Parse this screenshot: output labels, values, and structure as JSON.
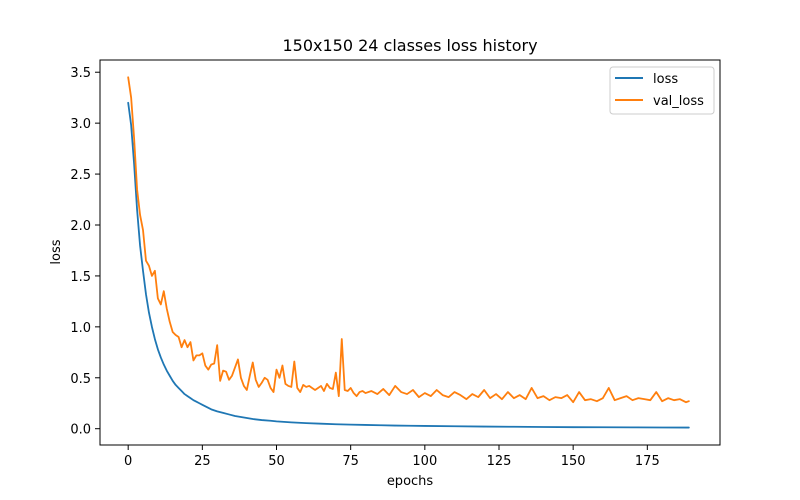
{
  "chart_data": {
    "type": "line",
    "title": "150x150 24 classes loss history",
    "xlabel": "epochs",
    "ylabel": "loss",
    "xlim": [
      -9.5,
      199.5
    ],
    "ylim": [
      -0.16,
      3.62
    ],
    "xticks": [
      0,
      25,
      50,
      75,
      100,
      125,
      150,
      175
    ],
    "yticks": [
      0.0,
      0.5,
      1.0,
      1.5,
      2.0,
      2.5,
      3.0,
      3.5
    ],
    "xtick_labels": [
      "0",
      "25",
      "50",
      "75",
      "100",
      "125",
      "150",
      "175"
    ],
    "ytick_labels": [
      "0.0",
      "0.5",
      "1.0",
      "1.5",
      "2.0",
      "2.5",
      "3.0",
      "3.5"
    ],
    "grid": false,
    "legend_position": "top-right",
    "series": [
      {
        "name": "loss",
        "color": "#1f77b4",
        "x": [
          0,
          1,
          2,
          3,
          4,
          5,
          6,
          7,
          8,
          9,
          10,
          11,
          12,
          13,
          14,
          15,
          16,
          17,
          18,
          19,
          20,
          21,
          22,
          23,
          24,
          25,
          26,
          27,
          28,
          29,
          30,
          32,
          34,
          36,
          38,
          40,
          42,
          45,
          48,
          50,
          55,
          60,
          65,
          70,
          75,
          80,
          85,
          90,
          95,
          100,
          110,
          120,
          130,
          140,
          150,
          160,
          170,
          180,
          189
        ],
        "y": [
          3.2,
          2.98,
          2.6,
          2.15,
          1.8,
          1.55,
          1.32,
          1.14,
          1.0,
          0.88,
          0.78,
          0.7,
          0.63,
          0.57,
          0.52,
          0.47,
          0.43,
          0.4,
          0.37,
          0.34,
          0.32,
          0.3,
          0.28,
          0.265,
          0.25,
          0.235,
          0.22,
          0.205,
          0.19,
          0.18,
          0.17,
          0.155,
          0.14,
          0.125,
          0.115,
          0.105,
          0.095,
          0.085,
          0.078,
          0.072,
          0.062,
          0.055,
          0.049,
          0.044,
          0.04,
          0.037,
          0.034,
          0.031,
          0.029,
          0.027,
          0.024,
          0.021,
          0.019,
          0.017,
          0.015,
          0.014,
          0.013,
          0.012,
          0.011
        ]
      },
      {
        "name": "val_loss",
        "color": "#ff7f0e",
        "x": [
          0,
          1,
          2,
          3,
          4,
          5,
          6,
          7,
          8,
          9,
          10,
          11,
          12,
          13,
          14,
          15,
          16,
          17,
          18,
          19,
          20,
          21,
          22,
          23,
          24,
          25,
          26,
          27,
          28,
          29,
          30,
          31,
          32,
          33,
          34,
          35,
          36,
          37,
          38,
          39,
          40,
          41,
          42,
          43,
          44,
          45,
          46,
          47,
          48,
          49,
          50,
          51,
          52,
          53,
          54,
          55,
          56,
          57,
          58,
          59,
          60,
          61,
          62,
          63,
          64,
          65,
          66,
          67,
          68,
          69,
          70,
          71,
          72,
          73,
          74,
          75,
          76,
          77,
          78,
          79,
          80,
          82,
          84,
          86,
          88,
          90,
          92,
          94,
          96,
          98,
          100,
          102,
          104,
          106,
          108,
          110,
          112,
          114,
          116,
          118,
          120,
          122,
          124,
          126,
          128,
          130,
          132,
          134,
          136,
          138,
          140,
          142,
          144,
          146,
          148,
          150,
          152,
          154,
          156,
          158,
          160,
          162,
          164,
          166,
          168,
          170,
          172,
          174,
          176,
          178,
          180,
          182,
          184,
          186,
          188,
          189
        ],
        "y": [
          3.45,
          3.25,
          2.85,
          2.35,
          2.1,
          1.95,
          1.65,
          1.6,
          1.5,
          1.55,
          1.28,
          1.22,
          1.35,
          1.18,
          1.05,
          0.95,
          0.92,
          0.9,
          0.8,
          0.87,
          0.8,
          0.85,
          0.67,
          0.72,
          0.72,
          0.74,
          0.62,
          0.58,
          0.63,
          0.64,
          0.82,
          0.47,
          0.57,
          0.56,
          0.48,
          0.52,
          0.6,
          0.68,
          0.5,
          0.42,
          0.38,
          0.52,
          0.65,
          0.48,
          0.41,
          0.45,
          0.5,
          0.48,
          0.4,
          0.36,
          0.58,
          0.5,
          0.62,
          0.44,
          0.42,
          0.41,
          0.66,
          0.4,
          0.36,
          0.43,
          0.41,
          0.42,
          0.4,
          0.38,
          0.4,
          0.42,
          0.37,
          0.44,
          0.4,
          0.39,
          0.55,
          0.32,
          0.88,
          0.38,
          0.37,
          0.4,
          0.35,
          0.32,
          0.36,
          0.37,
          0.35,
          0.37,
          0.34,
          0.39,
          0.33,
          0.42,
          0.36,
          0.34,
          0.38,
          0.31,
          0.35,
          0.32,
          0.38,
          0.33,
          0.31,
          0.36,
          0.33,
          0.29,
          0.34,
          0.31,
          0.38,
          0.3,
          0.34,
          0.29,
          0.36,
          0.3,
          0.33,
          0.29,
          0.4,
          0.3,
          0.32,
          0.28,
          0.31,
          0.3,
          0.33,
          0.26,
          0.36,
          0.28,
          0.29,
          0.27,
          0.3,
          0.4,
          0.28,
          0.3,
          0.32,
          0.28,
          0.3,
          0.29,
          0.28,
          0.36,
          0.27,
          0.3,
          0.28,
          0.29,
          0.26,
          0.27
        ]
      }
    ]
  }
}
